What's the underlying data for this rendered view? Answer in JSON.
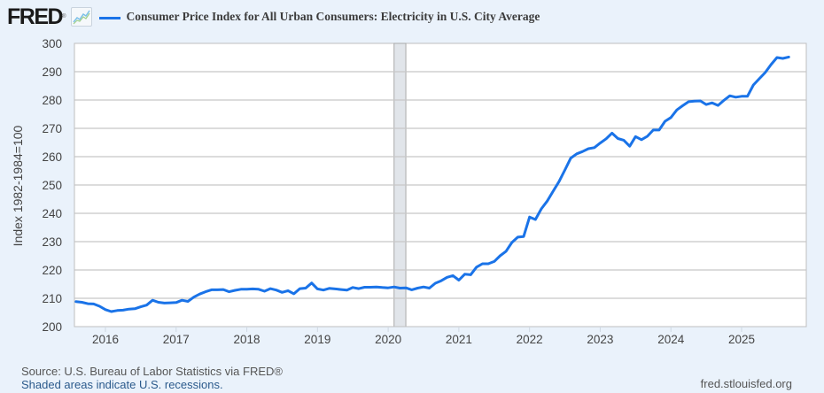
{
  "header": {
    "logo_text": "FRED",
    "logo_mark": "®",
    "logo_icon": "chart-line-icon"
  },
  "chart_data": {
    "type": "line",
    "title": "Consumer Price Index for All Urban Consumers: Electricity in U.S. City Average",
    "xlabel": "",
    "ylabel": "Index 1982-1984=100",
    "ylim": [
      200,
      300
    ],
    "xlim": [
      "2015-08",
      "2025-08"
    ],
    "grid": true,
    "legend_position": "top-left",
    "yticks": [
      "200",
      "210",
      "220",
      "230",
      "240",
      "250",
      "260",
      "270",
      "280",
      "290",
      "300"
    ],
    "xticks": [
      "2016",
      "2017",
      "2018",
      "2019",
      "2020",
      "2021",
      "2022",
      "2023",
      "2024",
      "2025"
    ],
    "recessions": [
      {
        "start": "2020-02",
        "end": "2020-04"
      }
    ],
    "series": [
      {
        "name": "Consumer Price Index for All Urban Consumers: Electricity in U.S. City Average",
        "color": "#1a73e8",
        "points": [
          [
            "2015-08",
            208.8
          ],
          [
            "2015-09",
            208.6
          ],
          [
            "2015-10",
            208.1
          ],
          [
            "2015-11",
            208.0
          ],
          [
            "2015-12",
            207.2
          ],
          [
            "2016-01",
            206.0
          ],
          [
            "2016-02",
            205.3
          ],
          [
            "2016-03",
            205.7
          ],
          [
            "2016-04",
            205.8
          ],
          [
            "2016-05",
            206.2
          ],
          [
            "2016-06",
            206.3
          ],
          [
            "2016-07",
            207.0
          ],
          [
            "2016-08",
            207.6
          ],
          [
            "2016-09",
            209.3
          ],
          [
            "2016-10",
            208.6
          ],
          [
            "2016-11",
            208.3
          ],
          [
            "2016-12",
            208.4
          ],
          [
            "2017-01",
            208.5
          ],
          [
            "2017-02",
            209.3
          ],
          [
            "2017-03",
            208.9
          ],
          [
            "2017-04",
            210.4
          ],
          [
            "2017-05",
            211.5
          ],
          [
            "2017-06",
            212.3
          ],
          [
            "2017-07",
            213.0
          ],
          [
            "2017-08",
            213.0
          ],
          [
            "2017-09",
            213.1
          ],
          [
            "2017-10",
            212.3
          ],
          [
            "2017-11",
            212.8
          ],
          [
            "2017-12",
            213.2
          ],
          [
            "2018-01",
            213.2
          ],
          [
            "2018-02",
            213.3
          ],
          [
            "2018-03",
            213.2
          ],
          [
            "2018-04",
            212.5
          ],
          [
            "2018-05",
            213.4
          ],
          [
            "2018-06",
            212.9
          ],
          [
            "2018-07",
            212.1
          ],
          [
            "2018-08",
            212.7
          ],
          [
            "2018-09",
            211.6
          ],
          [
            "2018-10",
            213.4
          ],
          [
            "2018-11",
            213.6
          ],
          [
            "2018-12",
            215.4
          ],
          [
            "2019-01",
            213.3
          ],
          [
            "2019-02",
            212.9
          ],
          [
            "2019-03",
            213.5
          ],
          [
            "2019-04",
            213.3
          ],
          [
            "2019-05",
            213.1
          ],
          [
            "2019-06",
            212.9
          ],
          [
            "2019-07",
            213.8
          ],
          [
            "2019-08",
            213.4
          ],
          [
            "2019-09",
            213.9
          ],
          [
            "2019-10",
            213.9
          ],
          [
            "2019-11",
            214.0
          ],
          [
            "2019-12",
            213.8
          ],
          [
            "2020-01",
            213.7
          ],
          [
            "2020-02",
            214.0
          ],
          [
            "2020-03",
            213.6
          ],
          [
            "2020-04",
            213.7
          ],
          [
            "2020-05",
            213.0
          ],
          [
            "2020-06",
            213.6
          ],
          [
            "2020-07",
            214.0
          ],
          [
            "2020-08",
            213.6
          ],
          [
            "2020-09",
            215.3
          ],
          [
            "2020-10",
            216.2
          ],
          [
            "2020-11",
            217.4
          ],
          [
            "2020-12",
            218.0
          ],
          [
            "2021-01",
            216.4
          ],
          [
            "2021-02",
            218.5
          ],
          [
            "2021-03",
            218.3
          ],
          [
            "2021-04",
            221.0
          ],
          [
            "2021-05",
            222.2
          ],
          [
            "2021-06",
            222.2
          ],
          [
            "2021-07",
            223.0
          ],
          [
            "2021-08",
            225.0
          ],
          [
            "2021-09",
            226.6
          ],
          [
            "2021-10",
            229.7
          ],
          [
            "2021-11",
            231.6
          ],
          [
            "2021-12",
            231.8
          ],
          [
            "2022-01",
            238.7
          ],
          [
            "2022-02",
            237.8
          ],
          [
            "2022-03",
            241.6
          ],
          [
            "2022-04",
            244.3
          ],
          [
            "2022-05",
            247.8
          ],
          [
            "2022-06",
            251.2
          ],
          [
            "2022-07",
            255.3
          ],
          [
            "2022-08",
            259.5
          ],
          [
            "2022-09",
            261.0
          ],
          [
            "2022-10",
            261.8
          ],
          [
            "2022-11",
            262.8
          ],
          [
            "2022-12",
            263.2
          ],
          [
            "2023-01",
            264.8
          ],
          [
            "2023-02",
            266.3
          ],
          [
            "2023-03",
            268.3
          ],
          [
            "2023-04",
            266.4
          ],
          [
            "2023-05",
            265.8
          ],
          [
            "2023-06",
            263.7
          ],
          [
            "2023-07",
            267.1
          ],
          [
            "2023-08",
            266.0
          ],
          [
            "2023-09",
            267.2
          ],
          [
            "2023-10",
            269.4
          ],
          [
            "2023-11",
            269.4
          ],
          [
            "2023-12",
            272.5
          ],
          [
            "2024-01",
            273.8
          ],
          [
            "2024-02",
            276.5
          ],
          [
            "2024-03",
            278.0
          ],
          [
            "2024-04",
            279.4
          ],
          [
            "2024-05",
            279.6
          ],
          [
            "2024-06",
            279.7
          ],
          [
            "2024-07",
            278.4
          ],
          [
            "2024-08",
            279.0
          ],
          [
            "2024-09",
            278.1
          ],
          [
            "2024-10",
            279.9
          ],
          [
            "2024-11",
            281.5
          ],
          [
            "2024-12",
            281.0
          ],
          [
            "2025-01",
            281.3
          ],
          [
            "2025-02",
            281.3
          ],
          [
            "2025-03",
            285.3
          ],
          [
            "2025-04",
            287.5
          ],
          [
            "2025-05",
            289.7
          ],
          [
            "2025-06",
            292.5
          ],
          [
            "2025-07",
            295.0
          ],
          [
            "2025-08",
            294.7
          ],
          [
            "2025-09",
            295.2
          ]
        ]
      }
    ]
  },
  "footer": {
    "source": "Source: U.S. Bureau of Labor Statistics via FRED®",
    "shaded_note": "Shaded areas indicate U.S. recessions.",
    "url": "fred.stlouisfed.org"
  }
}
